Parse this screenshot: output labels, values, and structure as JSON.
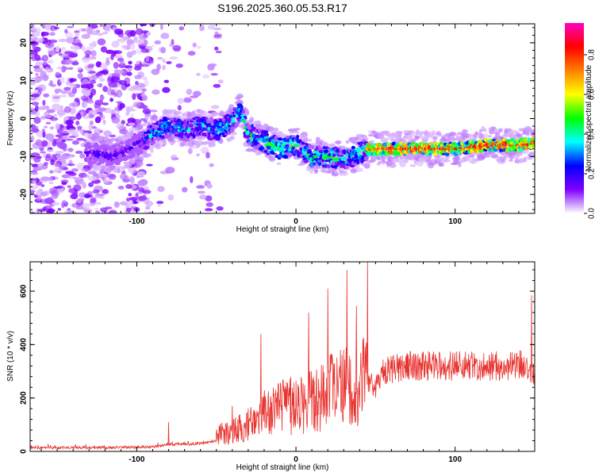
{
  "chart_data": [
    {
      "type": "heatmap",
      "title": "S196.2025.360.05.53.R17",
      "xlabel": "Height of straight line (km)",
      "ylabel": "Frequency (Hz)",
      "xlim": [
        -167,
        150
      ],
      "ylim": [
        -25,
        25
      ],
      "xticks": [
        -100,
        0,
        100
      ],
      "yticks": [
        -20,
        -10,
        0,
        10,
        20
      ],
      "colorbar": {
        "label": "Normalized spectral amplitude",
        "range": [
          0,
          0.96
        ],
        "ticks": [
          0.0,
          0.2,
          0.4,
          0.6,
          0.8
        ],
        "colormap": [
          "#ffffff",
          "#8000ff",
          "#0000ff",
          "#00ffff",
          "#00ff00",
          "#ffff00",
          "#ff8000",
          "#ff0000",
          "#ff00c0"
        ]
      },
      "ridge": {
        "x": [
          -130,
          -115,
          -100,
          -90,
          -80,
          -70,
          -60,
          -50,
          -40,
          -35,
          -30,
          -20,
          -10,
          0,
          10,
          20,
          30,
          40,
          45,
          60,
          80,
          100,
          120,
          140,
          150
        ],
        "y": [
          -9,
          -10,
          -7,
          -4,
          -2,
          -3,
          -2,
          -3,
          -1,
          2,
          -4,
          -6,
          -8,
          -7,
          -10,
          -10,
          -11,
          -9,
          -8,
          -8,
          -8,
          -8,
          -7,
          -7,
          -6.5
        ]
      }
    },
    {
      "type": "line",
      "xlabel": "Height of straight line (km)",
      "ylabel": "SNR (10 * v/v)",
      "xlim": [
        -167,
        150
      ],
      "ylim": [
        0,
        710
      ],
      "xticks": [
        -100,
        0,
        100
      ],
      "yticks": [
        0,
        200,
        400,
        600
      ],
      "color": "#e8332f",
      "envelope": {
        "x": [
          -167,
          -120,
          -90,
          -80,
          -60,
          -50,
          -45,
          -35,
          -25,
          -20,
          -10,
          0,
          10,
          20,
          30,
          40,
          45,
          50,
          55,
          70,
          100,
          130,
          145,
          150
        ],
        "y": [
          15,
          15,
          20,
          35,
          40,
          60,
          70,
          90,
          110,
          140,
          160,
          175,
          200,
          220,
          240,
          250,
          270,
          240,
          300,
          320,
          320,
          320,
          330,
          290
        ]
      },
      "peaks": [
        {
          "x": -80,
          "y": 110
        },
        {
          "x": -40,
          "y": 170
        },
        {
          "x": -22,
          "y": 440
        },
        {
          "x": 8,
          "y": 520
        },
        {
          "x": 20,
          "y": 610
        },
        {
          "x": 32,
          "y": 680
        },
        {
          "x": 38,
          "y": 545
        },
        {
          "x": 45,
          "y": 710
        },
        {
          "x": 148,
          "y": 585
        }
      ]
    }
  ]
}
